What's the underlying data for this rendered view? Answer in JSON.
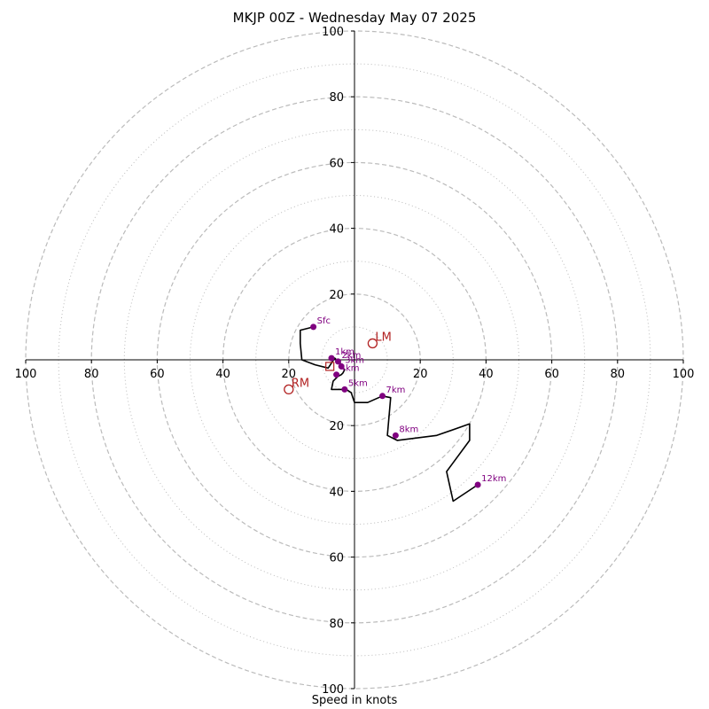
{
  "chart_data": {
    "type": "hodograph",
    "title": "MKJP 00Z - Wednesday May 07 2025",
    "xlabel": "Speed in knots",
    "range": [
      -100,
      100
    ],
    "rings_major": [
      20,
      40,
      60,
      80,
      100
    ],
    "rings_minor": [
      10,
      30,
      50,
      70,
      90
    ],
    "tick_values": [
      20,
      40,
      60,
      80,
      100
    ],
    "grid": true,
    "colors": {
      "trace": "#000000",
      "markers": "#800080",
      "storm_motion": "#b22222",
      "rings": "#bbbbbb"
    },
    "trace": {
      "name": "",
      "u": [
        -12.5,
        -16.5,
        -16.5,
        -16,
        -12,
        -8,
        -6,
        -5.5,
        -4.5,
        -4,
        -3,
        -3.5,
        -4,
        -5,
        -6.5,
        -7,
        -5.5,
        -2.5,
        -1,
        0,
        4,
        8.5,
        11,
        10,
        13,
        25,
        35,
        35,
        28,
        30,
        37.5
      ],
      "v": [
        10,
        9,
        5,
        0,
        -1.5,
        -2.5,
        0.5,
        0,
        -0.5,
        -2,
        -3,
        -4,
        -4.5,
        -5,
        -6.5,
        -9,
        -9,
        -9,
        -10,
        -13,
        -13,
        -11,
        -11.5,
        -23,
        -24.5,
        -23,
        -19.5,
        -24.5,
        -34,
        -43,
        -38
      ]
    },
    "height_markers": [
      {
        "label": "Sfc",
        "u": -12.5,
        "v": 10
      },
      {
        "label": "1km",
        "u": -7,
        "v": 0.5
      },
      {
        "label": "2km",
        "u": -5,
        "v": -0.5
      },
      {
        "label": "3km",
        "u": -4,
        "v": -2
      },
      {
        "label": "4km",
        "u": -5.5,
        "v": -4.5
      },
      {
        "label": "5km",
        "u": -3,
        "v": -9
      },
      {
        "label": "7km",
        "u": 8.5,
        "v": -11
      },
      {
        "label": "8km",
        "u": 12.5,
        "v": -23
      },
      {
        "label": "12km",
        "u": 37.5,
        "v": -38
      }
    ],
    "storm_motion": [
      {
        "label": "LM",
        "u": 5.5,
        "v": 5
      },
      {
        "label": "RM",
        "u": -20,
        "v": -9
      }
    ],
    "mean_wind_marker": {
      "u": -7.5,
      "v": -2
    }
  }
}
